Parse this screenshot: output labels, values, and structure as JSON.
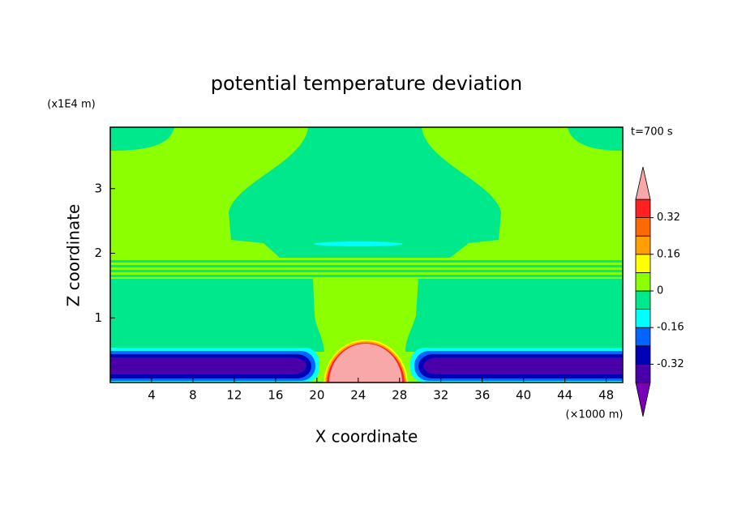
{
  "chart_data": {
    "type": "contour",
    "title": "potential temperature deviation",
    "xlabel": "X coordinate",
    "ylabel": "Z coordinate",
    "x_unit": "(×1000 m)",
    "y_unit": "(x1E4 m)",
    "annotation": "t=700 s",
    "xlim": [
      0,
      49.6
    ],
    "ylim": [
      0,
      3.95
    ],
    "xticks": [
      4,
      8,
      12,
      16,
      20,
      24,
      28,
      32,
      36,
      40,
      44,
      48
    ],
    "yticks": [
      1,
      2,
      3
    ],
    "colorbar": {
      "clim": [
        -0.4,
        0.4
      ],
      "ticks": [
        -0.32,
        -0.16,
        0,
        0.16,
        0.32
      ],
      "colors": [
        "#4a00a8",
        "#0000b4",
        "#0064ff",
        "#00ffff",
        "#00e88c",
        "#8cff00",
        "#ffff00",
        "#ffa000",
        "#ff6a00",
        "#ff2020"
      ],
      "under_color": "#7a00b8",
      "over_color": "#f8a8a8"
    }
  }
}
